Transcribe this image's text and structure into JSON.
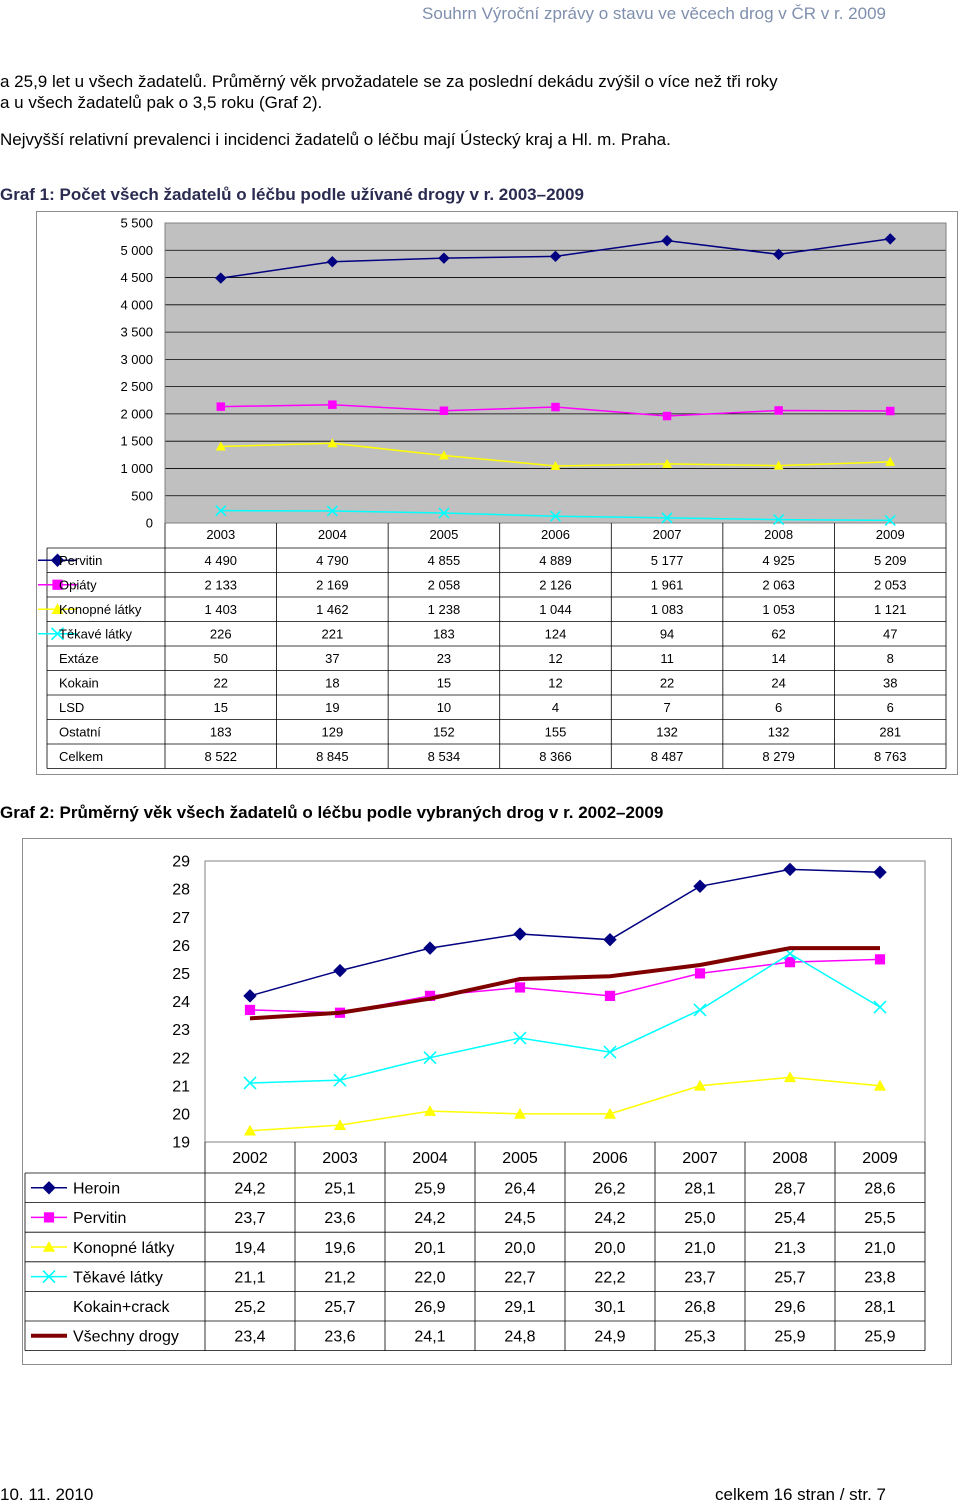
{
  "header": {
    "running_title": "Souhrn Výroční zprávy o stavu ve věcech drog v ČR v r. 2009"
  },
  "body": {
    "line1": "a 25,9 let u všech žadatelů. Průměrný věk prvožadatele se za poslední dekádu zvýšil o více než tři roky",
    "line2": "a u všech žadatelů pak o 3,5 roku (Graf 2).",
    "line3": "Nejvyšší relativní prevalenci i incidenci žadatelů o léčbu mají Ústecký kraj a Hl. m. Praha."
  },
  "graph1": {
    "caption": "Graf 1: Počet všech žadatelů o léčbu podle užívané drogy v r. 2003–2009"
  },
  "graph2": {
    "caption": "Graf 2: Průměrný věk všech žadatelů o léčbu podle vybraných drog v r. 2002–2009"
  },
  "footer": {
    "date": "10. 11. 2010",
    "pages": "celkem 16 stran / str. 7"
  },
  "chart_data": [
    {
      "type": "line",
      "categories": [
        "2003",
        "2004",
        "2005",
        "2006",
        "2007",
        "2008",
        "2009"
      ],
      "ylim": [
        0,
        5500
      ],
      "yticks": [
        "0",
        "500",
        "1 000",
        "1 500",
        "2 000",
        "2 500",
        "3 000",
        "3 500",
        "4 000",
        "4 500",
        "5 000",
        "5 500"
      ],
      "grid": true,
      "series": [
        {
          "name": "Pervitin",
          "values": [
            4490,
            4790,
            4855,
            4889,
            5177,
            4925,
            5209
          ],
          "labels": [
            "4 490",
            "4 790",
            "4 855",
            "4 889",
            "5 177",
            "4 925",
            "5 209"
          ],
          "color": "#000080",
          "marker": "diamond",
          "plotted": true
        },
        {
          "name": "Opiáty",
          "values": [
            2133,
            2169,
            2058,
            2126,
            1961,
            2063,
            2053
          ],
          "labels": [
            "2 133",
            "2 169",
            "2 058",
            "2 126",
            "1 961",
            "2 063",
            "2 053"
          ],
          "color": "#ff00ff",
          "marker": "square",
          "plotted": true
        },
        {
          "name": "Konopné látky",
          "values": [
            1403,
            1462,
            1238,
            1044,
            1083,
            1053,
            1121
          ],
          "labels": [
            "1 403",
            "1 462",
            "1 238",
            "1 044",
            "1 083",
            "1 053",
            "1 121"
          ],
          "color": "#ffff00",
          "marker": "triangle",
          "plotted": true
        },
        {
          "name": "Těkavé látky",
          "values": [
            226,
            221,
            183,
            124,
            94,
            62,
            47
          ],
          "labels": [
            "226",
            "221",
            "183",
            "124",
            "94",
            "62",
            "47"
          ],
          "color": "#00ffff",
          "marker": "x",
          "plotted": true
        },
        {
          "name": "Extáze",
          "values": [
            50,
            37,
            23,
            12,
            11,
            14,
            8
          ],
          "labels": [
            "50",
            "37",
            "23",
            "12",
            "11",
            "14",
            "8"
          ],
          "plotted": false
        },
        {
          "name": "Kokain",
          "values": [
            22,
            18,
            15,
            12,
            22,
            24,
            38
          ],
          "labels": [
            "22",
            "18",
            "15",
            "12",
            "22",
            "24",
            "38"
          ],
          "plotted": false
        },
        {
          "name": "LSD",
          "values": [
            15,
            19,
            10,
            4,
            7,
            6,
            6
          ],
          "labels": [
            "15",
            "19",
            "10",
            "4",
            "7",
            "6",
            "6"
          ],
          "plotted": false
        },
        {
          "name": "Ostatní",
          "values": [
            183,
            129,
            152,
            155,
            132,
            132,
            281
          ],
          "labels": [
            "183",
            "129",
            "152",
            "155",
            "132",
            "132",
            "281"
          ],
          "plotted": false
        },
        {
          "name": "Celkem",
          "values": [
            8522,
            8845,
            8534,
            8366,
            8487,
            8279,
            8763
          ],
          "labels": [
            "8 522",
            "8 845",
            "8 534",
            "8 366",
            "8 487",
            "8 279",
            "8 763"
          ],
          "plotted": false
        }
      ]
    },
    {
      "type": "line",
      "categories": [
        "2002",
        "2003",
        "2004",
        "2005",
        "2006",
        "2007",
        "2008",
        "2009"
      ],
      "ylim": [
        19,
        29
      ],
      "yticks": [
        "19",
        "20",
        "21",
        "22",
        "23",
        "24",
        "25",
        "26",
        "27",
        "28",
        "29"
      ],
      "grid": false,
      "series": [
        {
          "name": "Heroin",
          "values": [
            24.2,
            25.1,
            25.9,
            26.4,
            26.2,
            28.1,
            28.7,
            28.6
          ],
          "labels": [
            "24,2",
            "25,1",
            "25,9",
            "26,4",
            "26,2",
            "28,1",
            "28,7",
            "28,6"
          ],
          "color": "#000080",
          "marker": "diamond",
          "plotted": true
        },
        {
          "name": "Pervitin",
          "values": [
            23.7,
            23.6,
            24.2,
            24.5,
            24.2,
            25.0,
            25.4,
            25.5
          ],
          "labels": [
            "23,7",
            "23,6",
            "24,2",
            "24,5",
            "24,2",
            "25,0",
            "25,4",
            "25,5"
          ],
          "color": "#ff00ff",
          "marker": "square",
          "plotted": true
        },
        {
          "name": "Konopné látky",
          "values": [
            19.4,
            19.6,
            20.1,
            20.0,
            20.0,
            21.0,
            21.3,
            21.0
          ],
          "labels": [
            "19,4",
            "19,6",
            "20,1",
            "20,0",
            "20,0",
            "21,0",
            "21,3",
            "21,0"
          ],
          "color": "#ffff00",
          "marker": "triangle",
          "plotted": true
        },
        {
          "name": "Těkavé látky",
          "values": [
            21.1,
            21.2,
            22.0,
            22.7,
            22.2,
            23.7,
            25.7,
            23.8
          ],
          "labels": [
            "21,1",
            "21,2",
            "22,0",
            "22,7",
            "22,2",
            "23,7",
            "25,7",
            "23,8"
          ],
          "color": "#00ffff",
          "marker": "x",
          "plotted": true
        },
        {
          "name": "Kokain+crack",
          "values": [
            25.2,
            25.7,
            26.9,
            29.1,
            30.1,
            26.8,
            29.6,
            28.1
          ],
          "labels": [
            "25,2",
            "25,7",
            "26,9",
            "29,1",
            "30,1",
            "26,8",
            "29,6",
            "28,1"
          ],
          "plotted": false
        },
        {
          "name": "Všechny drogy",
          "values": [
            23.4,
            23.6,
            24.1,
            24.8,
            24.9,
            25.3,
            25.9,
            25.9
          ],
          "labels": [
            "23,4",
            "23,6",
            "24,1",
            "24,8",
            "24,9",
            "25,3",
            "25,9",
            "25,9"
          ],
          "color": "#800000",
          "marker": "line",
          "plotted": true
        }
      ]
    }
  ]
}
